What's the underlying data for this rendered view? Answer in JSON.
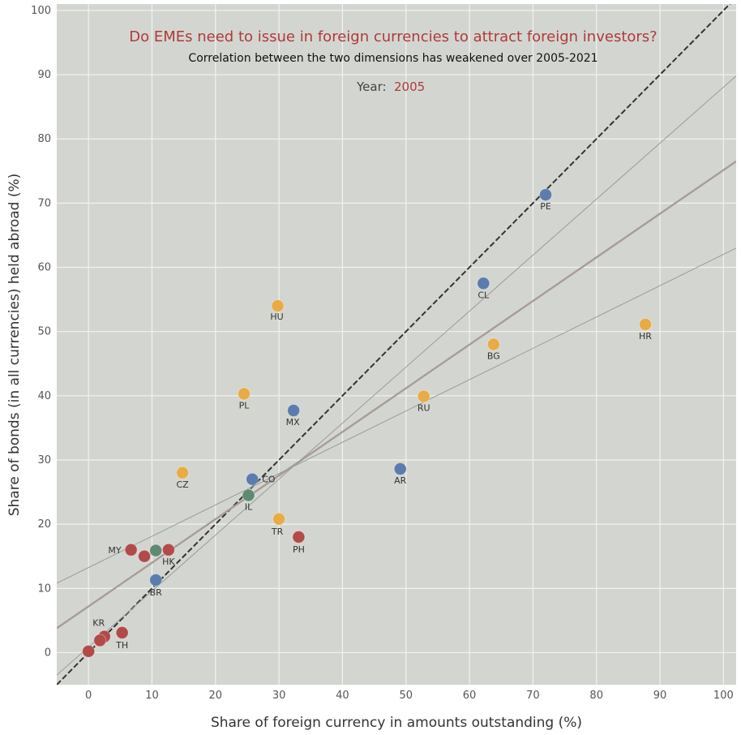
{
  "chart_data": {
    "type": "scatter",
    "title": "Do EMEs need to issue in foreign currencies to attract foreign investors?",
    "subtitle": "Correlation between the two dimensions has weakened  over 2005-2021",
    "year_label": "Year:",
    "year_value": "2005",
    "xlabel": "Share of foreign currency in amounts outstanding (%)",
    "ylabel": "Share of bonds (in all currencies) held abroad (%)",
    "xlim": [
      -5,
      102
    ],
    "ylim": [
      -5,
      101
    ],
    "xticks": [
      0,
      10,
      20,
      30,
      40,
      50,
      60,
      70,
      80,
      90,
      100
    ],
    "yticks": [
      0,
      10,
      20,
      30,
      40,
      50,
      60,
      70,
      80,
      90,
      100
    ],
    "grid": true,
    "colors": {
      "background": "#d3d6d0",
      "grid": "#f2f2f0",
      "blue": "#5b7cad",
      "orange": "#e8ab45",
      "red": "#b24a4a",
      "green": "#5f8a72",
      "diagonal": "#333333",
      "regression": "#a89c97",
      "band": "#9b9b98"
    },
    "reference_lines": [
      {
        "name": "45-degree line",
        "style": "dashed",
        "x1": -5,
        "y1": -5,
        "x2": 101.5,
        "y2": 101.5
      },
      {
        "name": "regression fit",
        "style": "solid",
        "x1": -5,
        "y1": 3.8,
        "x2": 102,
        "y2": 76.5
      },
      {
        "name": "upper band",
        "style": "thin",
        "x1": -5,
        "y1": -3.5,
        "x2": 102,
        "y2": 89.8
      },
      {
        "name": "lower band",
        "style": "thin",
        "x1": -5,
        "y1": 10.8,
        "x2": 102,
        "y2": 63.0
      }
    ],
    "points": [
      {
        "label": "PE",
        "x": 72,
        "y": 71.3,
        "group": "blue"
      },
      {
        "label": "CL",
        "x": 62.2,
        "y": 57.5,
        "group": "blue"
      },
      {
        "label": "HU",
        "x": 29.8,
        "y": 54,
        "group": "orange"
      },
      {
        "label": "BG",
        "x": 63.8,
        "y": 48,
        "group": "orange"
      },
      {
        "label": "HR",
        "x": 87.7,
        "y": 51.1,
        "group": "orange"
      },
      {
        "label": "PL",
        "x": 24.5,
        "y": 40.3,
        "group": "orange"
      },
      {
        "label": "MX",
        "x": 32.3,
        "y": 37.7,
        "group": "blue"
      },
      {
        "label": "RU",
        "x": 52.8,
        "y": 39.9,
        "group": "orange"
      },
      {
        "label": "CZ",
        "x": 14.8,
        "y": 28,
        "group": "orange"
      },
      {
        "label": "CO",
        "x": 25.8,
        "y": 27,
        "group": "blue"
      },
      {
        "label": "IL",
        "x": 25.2,
        "y": 24.5,
        "group": "green"
      },
      {
        "label": "AR",
        "x": 49.1,
        "y": 28.6,
        "group": "blue"
      },
      {
        "label": "TR",
        "x": 30,
        "y": 20.8,
        "group": "orange"
      },
      {
        "label": "PH",
        "x": 33.1,
        "y": 18,
        "group": "red"
      },
      {
        "label": "MY",
        "x": 6.7,
        "y": 16,
        "group": "red"
      },
      {
        "label": "",
        "x": 8.8,
        "y": 15,
        "group": "red"
      },
      {
        "label": "",
        "x": 10.6,
        "y": 15.9,
        "group": "green"
      },
      {
        "label": "HK",
        "x": 12.6,
        "y": 16,
        "group": "red"
      },
      {
        "label": "BR",
        "x": 10.6,
        "y": 11.3,
        "group": "blue"
      },
      {
        "label": "KR",
        "x": 2.5,
        "y": 2.5,
        "group": "red"
      },
      {
        "label": "",
        "x": 1.8,
        "y": 1.9,
        "group": "red"
      },
      {
        "label": "TH",
        "x": 5.3,
        "y": 3.1,
        "group": "red"
      },
      {
        "label": "",
        "x": 0,
        "y": 0.2,
        "group": "red"
      }
    ]
  }
}
